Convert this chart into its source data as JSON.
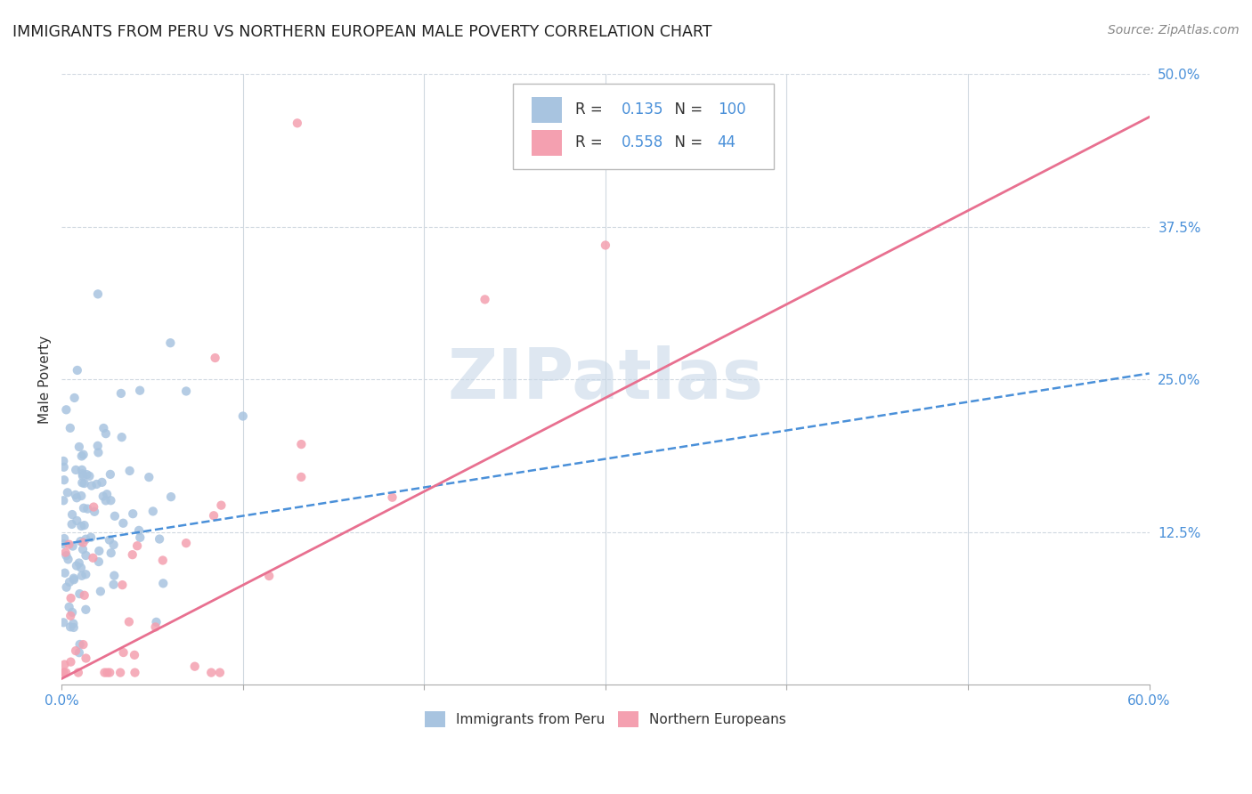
{
  "title": "IMMIGRANTS FROM PERU VS NORTHERN EUROPEAN MALE POVERTY CORRELATION CHART",
  "source": "Source: ZipAtlas.com",
  "ylabel": "Male Poverty",
  "right_yticks": [
    0.0,
    0.125,
    0.25,
    0.375,
    0.5
  ],
  "right_yticklabels": [
    "",
    "12.5%",
    "25.0%",
    "37.5%",
    "50.0%"
  ],
  "xlim": [
    0.0,
    0.6
  ],
  "ylim": [
    0.0,
    0.5
  ],
  "blue_R": 0.135,
  "blue_N": 100,
  "pink_R": 0.558,
  "pink_N": 44,
  "blue_color": "#a8c4e0",
  "pink_color": "#f4a0b0",
  "blue_line_color": "#4a90d9",
  "pink_line_color": "#e87090",
  "watermark": "ZIPatlas",
  "watermark_color": "#c8d8e8",
  "legend_blue_label": "Immigrants from Peru",
  "legend_pink_label": "Northern Europeans",
  "blue_line_x": [
    0.0,
    0.6
  ],
  "blue_line_y": [
    0.115,
    0.255
  ],
  "pink_line_x": [
    0.0,
    0.6
  ],
  "pink_line_y": [
    0.005,
    0.465
  ]
}
